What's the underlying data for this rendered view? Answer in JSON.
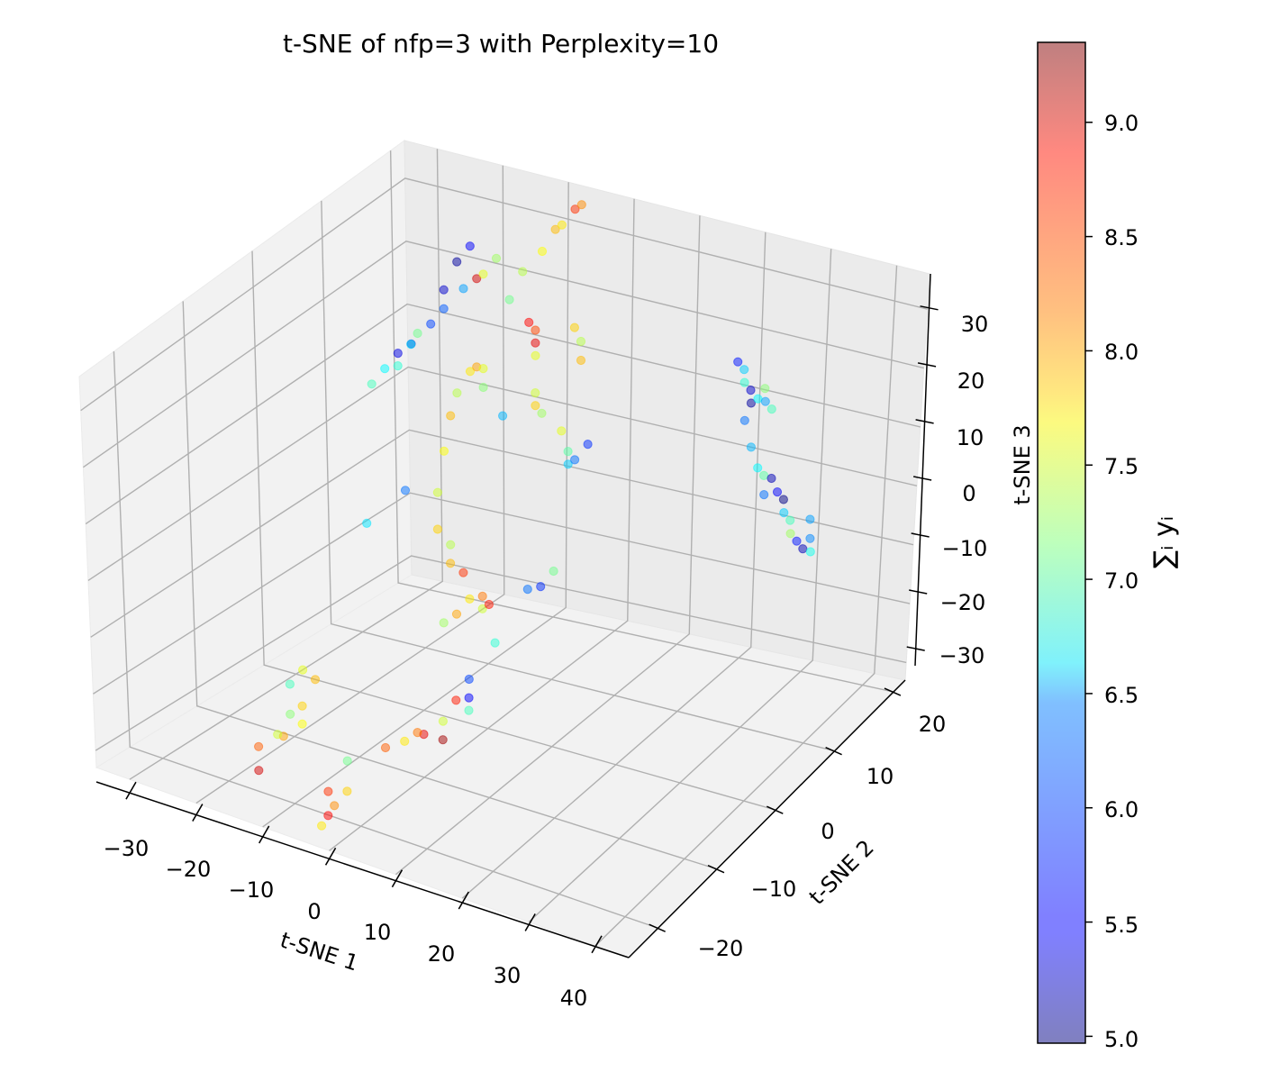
{
  "chart_data": {
    "type": "scatter",
    "title": "t-SNE of nfp=3 with Perplexity=10",
    "xlabel": "t-SNE 1",
    "ylabel": "t-SNE 2",
    "zlabel": "t-SNE 3",
    "xlim": [
      -35,
      45
    ],
    "ylim": [
      -25,
      22
    ],
    "zlim": [
      -33,
      36
    ],
    "xticks": [
      -30,
      -20,
      -10,
      0,
      10,
      20,
      30,
      40
    ],
    "yticks": [
      -20,
      -10,
      0,
      10,
      20
    ],
    "zticks": [
      -30,
      -20,
      -10,
      0,
      10,
      20,
      30
    ],
    "xtick_labels": [
      "−30",
      "−20",
      "−10",
      "0",
      "10",
      "20",
      "30",
      "40"
    ],
    "ytick_labels": [
      "−20",
      "−10",
      "0",
      "10",
      "20"
    ],
    "ztick_labels": [
      "−30",
      "−20",
      "−10",
      "0",
      "10",
      "20",
      "30"
    ],
    "grid": true,
    "projection": "3d",
    "colormap": "jet",
    "alpha": 0.5,
    "colorbar": {
      "label": "∑ᵢ yᵢ",
      "range": [
        4.97,
        9.35
      ],
      "ticks": [
        5.0,
        5.5,
        6.0,
        6.5,
        7.0,
        7.5,
        8.0,
        8.5,
        9.0
      ],
      "tick_labels": [
        "5.0",
        "5.5",
        "6.0",
        "6.5",
        "7.0",
        "7.5",
        "8.0",
        "8.5",
        "9.0"
      ]
    },
    "points": [
      {
        "x": -26,
        "y": 14,
        "z": 12,
        "c": 5.3
      },
      {
        "x": -27,
        "y": 13,
        "z": 11,
        "c": 5.4
      },
      {
        "x": -24,
        "y": 15,
        "z": 15,
        "c": 5.8
      },
      {
        "x": -23,
        "y": 16,
        "z": 20,
        "c": 5.3
      },
      {
        "x": -22,
        "y": 17,
        "z": 24,
        "c": 5.1
      },
      {
        "x": -21,
        "y": 18,
        "z": 26,
        "c": 5.5
      },
      {
        "x": -28,
        "y": 12,
        "z": 9,
        "c": 6.6
      },
      {
        "x": -29,
        "y": 11,
        "z": 7,
        "c": 6.9
      },
      {
        "x": -25,
        "y": 14,
        "z": 14,
        "c": 7.1
      },
      {
        "x": -20,
        "y": 18,
        "z": 21,
        "c": 9.0
      },
      {
        "x": -19,
        "y": 18,
        "z": 22,
        "c": 7.6
      },
      {
        "x": -18,
        "y": 19,
        "z": 24,
        "c": 7.3
      },
      {
        "x": -26,
        "y": 12,
        "z": 10,
        "c": 6.8
      },
      {
        "x": -25,
        "y": 13,
        "z": 13,
        "c": 6.5
      },
      {
        "x": -22,
        "y": 15,
        "z": 18,
        "c": 5.9
      },
      {
        "x": -20,
        "y": 16,
        "z": 21,
        "c": 6.2
      },
      {
        "x": -10,
        "y": 20,
        "z": 30,
        "c": 8.0
      },
      {
        "x": -9,
        "y": 20,
        "z": 31,
        "c": 7.8
      },
      {
        "x": -8,
        "y": 21,
        "z": 33,
        "c": 8.6
      },
      {
        "x": -7,
        "y": 21,
        "z": 34,
        "c": 8.2
      },
      {
        "x": -11,
        "y": 19,
        "z": 27,
        "c": 7.7
      },
      {
        "x": -13,
        "y": 18,
        "z": 24,
        "c": 7.4
      },
      {
        "x": -14,
        "y": 17,
        "z": 20,
        "c": 7.1
      },
      {
        "x": -12,
        "y": 18,
        "z": 16,
        "c": 8.8
      },
      {
        "x": -11,
        "y": 18,
        "z": 15,
        "c": 8.5
      },
      {
        "x": -10,
        "y": 17,
        "z": 14,
        "c": 8.9
      },
      {
        "x": -9,
        "y": 16,
        "z": 13,
        "c": 7.6
      },
      {
        "x": -5,
        "y": 18,
        "z": 17,
        "c": 7.9
      },
      {
        "x": -4,
        "y": 18,
        "z": 15,
        "c": 7.4
      },
      {
        "x": -3,
        "y": 17,
        "z": 13,
        "c": 8.0
      },
      {
        "x": -8,
        "y": 15,
        "z": 8,
        "c": 7.5
      },
      {
        "x": -7,
        "y": 14,
        "z": 7,
        "c": 7.9
      },
      {
        "x": -6,
        "y": 14,
        "z": 6,
        "c": 7.3
      },
      {
        "x": -2,
        "y": 13,
        "z": 5,
        "c": 7.6
      },
      {
        "x": 0,
        "y": 12,
        "z": 3,
        "c": 7.0
      },
      {
        "x": 1,
        "y": 11,
        "z": 2,
        "c": 6.4
      },
      {
        "x": 2,
        "y": 11,
        "z": 3,
        "c": 6.0
      },
      {
        "x": 3,
        "y": 12,
        "z": 5,
        "c": 5.7
      },
      {
        "x": -12,
        "y": 14,
        "z": 4,
        "c": 6.3
      },
      {
        "x": -16,
        "y": 13,
        "z": 11,
        "c": 7.8
      },
      {
        "x": -15,
        "y": 13,
        "z": 12,
        "c": 8.1
      },
      {
        "x": -14,
        "y": 13,
        "z": 12,
        "c": 7.6
      },
      {
        "x": -13,
        "y": 12,
        "z": 10,
        "c": 7.2
      },
      {
        "x": -17,
        "y": 12,
        "z": 8,
        "c": 7.4
      },
      {
        "x": -18,
        "y": 12,
        "z": 4,
        "c": 8.0
      },
      {
        "x": -18,
        "y": 11,
        "z": -1,
        "c": 7.7
      },
      {
        "x": -18,
        "y": 10,
        "z": -7,
        "c": 7.5
      },
      {
        "x": -17,
        "y": 9,
        "z": -12,
        "c": 7.9
      },
      {
        "x": -23,
        "y": 10,
        "z": -8,
        "c": 6.0
      },
      {
        "x": -28,
        "y": 9,
        "z": -14,
        "c": 6.5
      },
      {
        "x": -15,
        "y": 9,
        "z": -14,
        "c": 7.4
      },
      {
        "x": -14,
        "y": 8,
        "z": -16,
        "c": 8.0
      },
      {
        "x": -12,
        "y": 8,
        "z": -17,
        "c": 8.6
      },
      {
        "x": -10,
        "y": 7,
        "z": -20,
        "c": 7.8
      },
      {
        "x": -8,
        "y": 7,
        "z": -19,
        "c": 8.3
      },
      {
        "x": -7,
        "y": 6,
        "z": -20,
        "c": 7.5
      },
      {
        "x": -6,
        "y": 6,
        "z": -19,
        "c": 8.7
      },
      {
        "x": -11,
        "y": 6,
        "z": -22,
        "c": 8.1
      },
      {
        "x": -13,
        "y": 6,
        "z": -24,
        "c": 7.3
      },
      {
        "x": -2,
        "y": 8,
        "z": -17,
        "c": 6.0
      },
      {
        "x": 0,
        "y": 8,
        "z": -16,
        "c": 5.7
      },
      {
        "x": 1,
        "y": 9,
        "z": -14,
        "c": 7.1
      },
      {
        "x": -4,
        "y": 5,
        "z": -24,
        "c": 6.8
      },
      {
        "x": -6,
        "y": 3,
        "z": -29,
        "c": 5.8
      },
      {
        "x": -5,
        "y": 2,
        "z": -31,
        "c": 5.5
      },
      {
        "x": -4,
        "y": 1,
        "z": -32,
        "c": 6.9
      },
      {
        "x": -7,
        "y": 2,
        "z": -32,
        "c": 8.7
      },
      {
        "x": -8,
        "y": 1,
        "z": -35,
        "c": 7.5
      },
      {
        "x": -10,
        "y": 0,
        "z": -37,
        "c": 8.9
      },
      {
        "x": -11,
        "y": 0,
        "z": -37,
        "c": 8.3
      },
      {
        "x": -12,
        "y": -1,
        "z": -38,
        "c": 7.8
      },
      {
        "x": -7,
        "y": 0,
        "z": -37,
        "c": 9.2
      },
      {
        "x": -15,
        "y": -1,
        "z": -40,
        "c": 8.4
      },
      {
        "x": -20,
        "y": -2,
        "z": -43,
        "c": 7.1
      },
      {
        "x": -18,
        "y": -4,
        "z": -46,
        "c": 7.9
      },
      {
        "x": -21,
        "y": -4,
        "z": -47,
        "c": 8.6
      },
      {
        "x": -20,
        "y": -5,
        "z": -50,
        "c": 8.8
      },
      {
        "x": -20,
        "y": -6,
        "z": -51,
        "c": 7.8
      },
      {
        "x": -19,
        "y": -5,
        "z": -48,
        "c": 8.2
      },
      {
        "x": -26,
        "y": -3,
        "z": -38,
        "c": 7.7
      },
      {
        "x": -27,
        "y": -2,
        "z": -36,
        "c": 7.9
      },
      {
        "x": -29,
        "y": -3,
        "z": -41,
        "c": 8.1
      },
      {
        "x": -32,
        "y": -4,
        "z": -47,
        "c": 9.0
      },
      {
        "x": -33,
        "y": -3,
        "z": -44,
        "c": 8.4
      },
      {
        "x": -31,
        "y": -2,
        "z": -42,
        "c": 7.5
      },
      {
        "x": -30,
        "y": -1,
        "z": -39,
        "c": 7.2
      },
      {
        "x": -31,
        "y": 0,
        "z": -35,
        "c": 6.9
      },
      {
        "x": -30,
        "y": 1,
        "z": -33,
        "c": 7.6
      },
      {
        "x": -27,
        "y": 0,
        "z": -33,
        "c": 8.0
      },
      {
        "x": 20,
        "y": 18,
        "z": 18,
        "c": 5.6
      },
      {
        "x": 21,
        "y": 18,
        "z": 17,
        "c": 6.4
      },
      {
        "x": 22,
        "y": 17,
        "z": 16,
        "c": 6.8
      },
      {
        "x": 23,
        "y": 17,
        "z": 15,
        "c": 5.3
      },
      {
        "x": 24,
        "y": 16,
        "z": 14,
        "c": 5.1
      },
      {
        "x": 25,
        "y": 16,
        "z": 15,
        "c": 6.6
      },
      {
        "x": 26,
        "y": 16,
        "z": 17,
        "c": 7.2
      },
      {
        "x": 27,
        "y": 15,
        "z": 16,
        "c": 6.2
      },
      {
        "x": 28,
        "y": 15,
        "z": 15,
        "c": 6.9
      },
      {
        "x": 24,
        "y": 15,
        "z": 12,
        "c": 6.0
      },
      {
        "x": 26,
        "y": 14,
        "z": 9,
        "c": 6.3
      },
      {
        "x": 28,
        "y": 13,
        "z": 7,
        "c": 6.6
      },
      {
        "x": 29,
        "y": 13,
        "z": 6,
        "c": 7.0
      },
      {
        "x": 31,
        "y": 12,
        "z": 7,
        "c": 5.2
      },
      {
        "x": 32,
        "y": 12,
        "z": 5,
        "c": 5.5
      },
      {
        "x": 33,
        "y": 12,
        "z": 4,
        "c": 5.0
      },
      {
        "x": 34,
        "y": 11,
        "z": 3,
        "c": 6.4
      },
      {
        "x": 35,
        "y": 11,
        "z": 2,
        "c": 6.9
      },
      {
        "x": 36,
        "y": 10,
        "z": 1,
        "c": 7.3
      },
      {
        "x": 37,
        "y": 10,
        "z": 0,
        "c": 5.6
      },
      {
        "x": 38,
        "y": 10,
        "z": -1,
        "c": 5.2
      },
      {
        "x": 39,
        "y": 10,
        "z": 1,
        "c": 6.1
      },
      {
        "x": 40,
        "y": 9,
        "z": 0,
        "c": 6.7
      },
      {
        "x": 38,
        "y": 11,
        "z": 3,
        "c": 6.2
      },
      {
        "x": 30,
        "y": 12,
        "z": 4,
        "c": 6.0
      }
    ]
  }
}
